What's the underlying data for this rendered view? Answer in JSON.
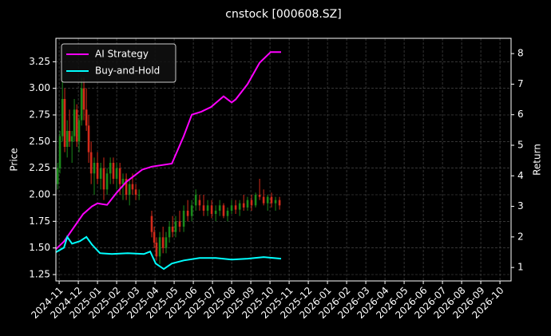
{
  "chart_data": {
    "type": "candlestick",
    "title": "cnstock [000608.SZ]",
    "ylabel": "Price",
    "y2label": "Return",
    "x": [
      -0.08,
      0.04,
      0.17,
      0.29,
      0.42,
      0.54,
      0.67,
      0.79,
      0.92,
      1.04,
      1.17,
      1.29,
      1.42,
      1.54,
      1.67,
      1.83,
      2.0,
      2.17,
      2.33,
      2.5,
      2.67,
      2.83,
      3.0,
      3.17,
      3.33,
      3.5,
      3.67,
      3.83,
      4.0,
      4.17,
      4.83,
      4.96,
      5.08,
      5.25,
      5.42,
      5.58,
      5.75,
      5.92,
      6.08,
      6.29,
      6.5,
      6.71,
      6.92,
      7.13,
      7.33,
      7.54,
      7.75,
      7.96,
      8.17,
      8.38,
      8.58,
      8.79,
      9.0,
      9.21,
      9.42,
      9.63,
      9.83,
      10.04,
      10.25,
      10.46,
      10.67,
      10.88,
      11.08,
      11.29,
      11.5
    ],
    "open": [
      2.1,
      2.25,
      2.55,
      2.9,
      2.45,
      2.6,
      2.5,
      2.55,
      2.8,
      2.5,
      2.7,
      3.0,
      2.8,
      2.65,
      2.4,
      2.2,
      2.3,
      2.15,
      2.25,
      2.05,
      2.2,
      2.3,
      2.15,
      2.25,
      2.1,
      2.15,
      2.0,
      2.1,
      2.05,
      2.0,
      1.8,
      1.65,
      1.55,
      1.42,
      1.6,
      1.5,
      1.6,
      1.7,
      1.65,
      1.75,
      1.7,
      1.85,
      1.8,
      1.9,
      1.95,
      1.9,
      1.85,
      1.9,
      1.82,
      1.85,
      1.9,
      1.8,
      1.85,
      1.9,
      1.86,
      1.92,
      1.88,
      1.95,
      1.9,
      2.0,
      1.98,
      1.92,
      1.98,
      1.92,
      1.95
    ],
    "high": [
      2.3,
      2.6,
      3.15,
      3.0,
      2.7,
      2.8,
      2.6,
      2.9,
      2.85,
      2.75,
      3.1,
      3.1,
      3.0,
      2.75,
      2.5,
      2.35,
      2.4,
      2.3,
      2.35,
      2.25,
      2.35,
      2.35,
      2.3,
      2.3,
      2.2,
      2.2,
      2.15,
      2.2,
      2.1,
      2.05,
      1.85,
      1.7,
      1.6,
      1.65,
      1.7,
      1.65,
      1.75,
      1.8,
      1.8,
      1.85,
      1.9,
      1.95,
      1.95,
      2.05,
      2.0,
      2.0,
      1.95,
      1.95,
      1.9,
      1.95,
      1.92,
      1.88,
      1.95,
      1.95,
      1.95,
      2.0,
      1.98,
      2.0,
      2.02,
      2.15,
      2.05,
      2.0,
      2.02,
      1.98,
      1.98
    ],
    "low": [
      2.05,
      2.2,
      2.5,
      2.4,
      2.35,
      2.45,
      2.3,
      2.5,
      2.45,
      2.4,
      2.65,
      2.7,
      2.6,
      2.3,
      2.1,
      2.0,
      2.1,
      2.05,
      1.95,
      2.0,
      2.1,
      2.1,
      2.05,
      2.0,
      1.95,
      1.95,
      1.9,
      2.0,
      1.95,
      1.95,
      1.6,
      1.5,
      1.38,
      1.35,
      1.45,
      1.45,
      1.55,
      1.6,
      1.6,
      1.65,
      1.65,
      1.75,
      1.75,
      1.85,
      1.85,
      1.8,
      1.8,
      1.78,
      1.75,
      1.8,
      1.78,
      1.75,
      1.82,
      1.82,
      1.8,
      1.85,
      1.85,
      1.85,
      1.88,
      1.95,
      1.9,
      1.85,
      1.88,
      1.85,
      1.86
    ],
    "close": [
      2.25,
      2.55,
      2.9,
      2.45,
      2.6,
      2.5,
      2.55,
      2.8,
      2.5,
      2.7,
      3.0,
      2.8,
      2.65,
      2.4,
      2.2,
      2.3,
      2.15,
      2.25,
      2.05,
      2.2,
      2.3,
      2.15,
      2.25,
      2.1,
      2.15,
      2.0,
      2.1,
      2.05,
      2.0,
      2.0,
      1.65,
      1.55,
      1.42,
      1.6,
      1.5,
      1.6,
      1.7,
      1.65,
      1.75,
      1.7,
      1.85,
      1.8,
      1.9,
      2.0,
      1.9,
      1.85,
      1.9,
      1.82,
      1.85,
      1.9,
      1.8,
      1.85,
      1.9,
      1.86,
      1.92,
      1.88,
      1.95,
      1.9,
      2.0,
      1.98,
      1.92,
      1.98,
      1.92,
      1.95,
      1.9
    ],
    "up_color": "#1a8a1a",
    "down_color": "#d42a1a",
    "series": [
      {
        "name": "AI Strategy",
        "color": "#ff00ff",
        "axis": "y2",
        "x": [
          -0.17,
          0.25,
          0.75,
          1.25,
          1.71,
          2.0,
          2.5,
          3.0,
          3.5,
          4.33,
          4.83,
          5.88,
          6.5,
          6.92,
          7.42,
          7.92,
          8.58,
          9.0,
          9.21,
          9.83,
          10.46,
          11.04,
          11.42,
          11.58
        ],
        "values": [
          1.6,
          1.85,
          2.3,
          2.75,
          3.0,
          3.1,
          3.05,
          3.45,
          3.8,
          4.2,
          4.3,
          4.4,
          5.3,
          6.0,
          6.1,
          6.25,
          6.6,
          6.4,
          6.5,
          7.0,
          7.7,
          8.05,
          8.05,
          8.05
        ]
      },
      {
        "name": "Buy-and-Hold",
        "color": "#00ffff",
        "axis": "y2",
        "x": [
          -0.17,
          0.25,
          0.42,
          0.67,
          1.08,
          1.42,
          1.71,
          2.13,
          2.75,
          3.58,
          4.42,
          4.75,
          5.04,
          5.46,
          5.88,
          6.5,
          7.33,
          8.17,
          9.0,
          9.83,
          10.67,
          11.58
        ],
        "values": [
          1.5,
          1.65,
          2.0,
          1.78,
          1.86,
          2.0,
          1.75,
          1.47,
          1.44,
          1.47,
          1.44,
          1.52,
          1.13,
          0.95,
          1.13,
          1.23,
          1.31,
          1.31,
          1.26,
          1.29,
          1.34,
          1.29
        ]
      }
    ],
    "xlim": [
      -0.17,
      23.58
    ],
    "xticks": [
      {
        "value": 0,
        "label": "2024-11"
      },
      {
        "value": 1,
        "label": "2024-12"
      },
      {
        "value": 2,
        "label": "2025-01"
      },
      {
        "value": 3,
        "label": "2025-02"
      },
      {
        "value": 4,
        "label": "2025-03"
      },
      {
        "value": 5,
        "label": "2025-04"
      },
      {
        "value": 6,
        "label": "2025-05"
      },
      {
        "value": 7,
        "label": "2025-06"
      },
      {
        "value": 8,
        "label": "2025-07"
      },
      {
        "value": 9,
        "label": "2025-08"
      },
      {
        "value": 10,
        "label": "2025-09"
      },
      {
        "value": 11,
        "label": "2025-10"
      },
      {
        "value": 12,
        "label": "2025-11"
      },
      {
        "value": 13,
        "label": "2025-12"
      },
      {
        "value": 14,
        "label": "2026-01"
      },
      {
        "value": 15,
        "label": "2026-02"
      },
      {
        "value": 16,
        "label": "2026-03"
      },
      {
        "value": 17,
        "label": "2026-04"
      },
      {
        "value": 18,
        "label": "2026-05"
      },
      {
        "value": 19,
        "label": "2026-06"
      },
      {
        "value": 20,
        "label": "2026-07"
      },
      {
        "value": 21,
        "label": "2026-08"
      },
      {
        "value": 22,
        "label": "2026-09"
      },
      {
        "value": 23,
        "label": "2026-10"
      }
    ],
    "ylim": [
      1.19,
      3.47
    ],
    "yticks": [
      1.25,
      {
        "value": 1.5,
        "label": "1.50"
      },
      1.75,
      {
        "value": 2,
        "label": "2.00"
      },
      2.25,
      {
        "value": 2.5,
        "label": "2.50"
      },
      2.75,
      {
        "value": 3,
        "label": "3.00"
      },
      3.25
    ],
    "y2lim": [
      0.56,
      8.5
    ],
    "y2ticks": [
      1,
      2,
      3,
      4,
      5,
      6,
      7,
      8
    ],
    "grid": true,
    "legend": "upper left"
  }
}
